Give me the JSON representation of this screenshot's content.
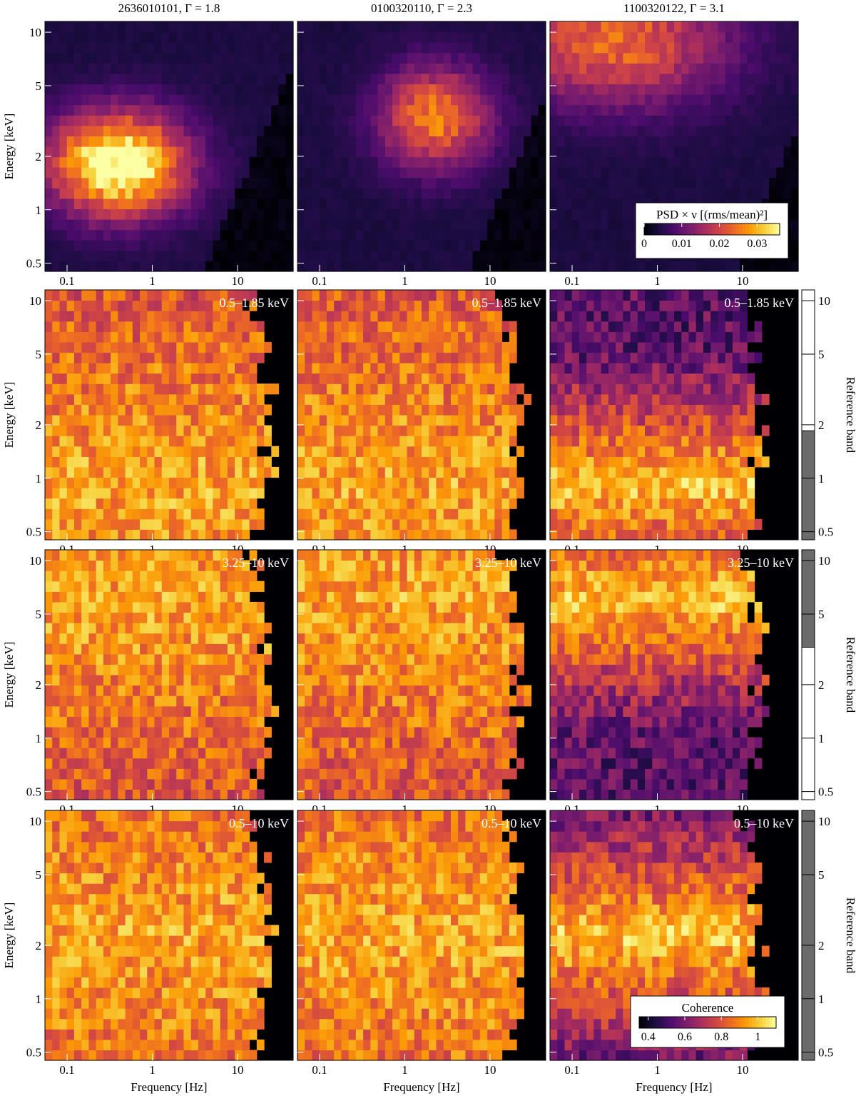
{
  "figure": {
    "columns": [
      {
        "title": "2636010101, Γ = 1.8",
        "heat": {
          "peak_logf": -0.4,
          "peak_loge": 0.26,
          "sf": 0.55,
          "se": 0.2,
          "amp": 0.036,
          "base": 0.004,
          "cutoff_shift": 0.0
        }
      },
      {
        "title": "0100320110, Γ = 2.3",
        "heat": {
          "peak_logf": 0.35,
          "peak_loge": 0.52,
          "sf": 0.45,
          "se": 0.2,
          "amp": 0.022,
          "base": 0.004,
          "cutoff_shift": 0.15
        }
      },
      {
        "title": "1100320122, Γ = 3.1",
        "heat": {
          "peak_logf": -0.5,
          "peak_loge": 0.95,
          "sf": 0.9,
          "se": 0.25,
          "amp": 0.02,
          "base": 0.004,
          "cutoff_shift": 0.3
        }
      }
    ],
    "rows": [
      {
        "kind": "psd",
        "band_label": ""
      },
      {
        "kind": "coherence",
        "band_label": "0.5–1.85 keV",
        "ref_band_keV": [
          0.45,
          1.85
        ]
      },
      {
        "kind": "coherence",
        "band_label": "3.25–10 keV",
        "ref_band_keV": [
          3.25,
          11.5
        ]
      },
      {
        "kind": "coherence",
        "band_label": "0.5–10 keV",
        "ref_band_keV": [
          0.45,
          11.5
        ]
      }
    ],
    "ylabel": "Energy [keV]",
    "xlabel": "Frequency [Hz]",
    "ref_axis_label": "Reference band",
    "psd_colorbar": {
      "label": "PSD × ν [(rms/mean)²]",
      "range": [
        0,
        0.036
      ],
      "ticks": [
        0,
        0.01,
        0.02,
        0.03
      ],
      "tick_labels": [
        "0",
        "0.01",
        "0.02",
        "0.03"
      ]
    },
    "coherence_colorbar": {
      "label": "Coherence",
      "range": [
        0.35,
        1.1
      ],
      "ticks": [
        0.4,
        0.6,
        0.8,
        1.0
      ],
      "tick_labels": [
        "0.4",
        "0.6",
        "0.8",
        "1"
      ]
    },
    "colormap": [
      "#000004",
      "#1b0c41",
      "#4a0c6b",
      "#781c6d",
      "#a52c60",
      "#cf4446",
      "#ed6925",
      "#fb9b06",
      "#f7d13d",
      "#fcffa4"
    ]
  },
  "chart_data": {
    "type": "heatmap",
    "x_axis": {
      "label": "Frequency [Hz]",
      "scale": "log",
      "range": [
        0.055,
        45
      ],
      "ticks": [
        0.1,
        1,
        10
      ],
      "tick_labels": [
        "0.1",
        "1",
        "10"
      ]
    },
    "y_axis": {
      "label": "Energy [keV]",
      "scale": "log",
      "range": [
        0.45,
        11.5
      ],
      "ticks": [
        0.5,
        1,
        2,
        5,
        10
      ],
      "tick_labels": [
        "0.5",
        "1",
        "2",
        "5",
        "10"
      ]
    },
    "reference_axis": {
      "label": "Reference band",
      "ticks": [
        0.5,
        1,
        2,
        5,
        10
      ],
      "tick_labels": [
        "0.5",
        "1",
        "2",
        "5",
        "10"
      ]
    },
    "panels_grid": "4 rows × 3 columns",
    "column_titles": [
      "2636010101, Γ = 1.8",
      "0100320110, Γ = 2.3",
      "1100320122, Γ = 3.1"
    ],
    "row_quantities": [
      "PSD × ν [(rms/mean)²]",
      "Coherence",
      "Coherence",
      "Coherence"
    ],
    "reference_bands": [
      "0.5–1.85 keV",
      "3.25–10 keV",
      "0.5–10 keV"
    ]
  }
}
